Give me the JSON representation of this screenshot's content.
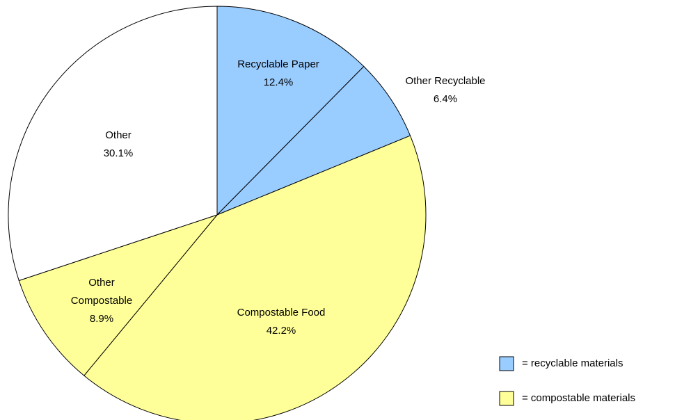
{
  "chart_data": {
    "type": "pie",
    "categories": [
      "Recyclable Paper",
      "Other Recyclable",
      "Compostable Food",
      "Other Compostable",
      "Other"
    ],
    "values": [
      12.4,
      6.4,
      42.2,
      8.9,
      30.1
    ],
    "value_labels": [
      "12.4%",
      "6.4%",
      "42.2%",
      "8.9%",
      "30.1%"
    ],
    "colors": [
      "#99ccff",
      "#99ccff",
      "#ffff99",
      "#ffff99",
      "#ffffff"
    ],
    "legend": [
      {
        "label": "= recyclable materials",
        "color": "#99ccff"
      },
      {
        "label": "= compostable materials",
        "color": "#ffff99"
      }
    ]
  }
}
